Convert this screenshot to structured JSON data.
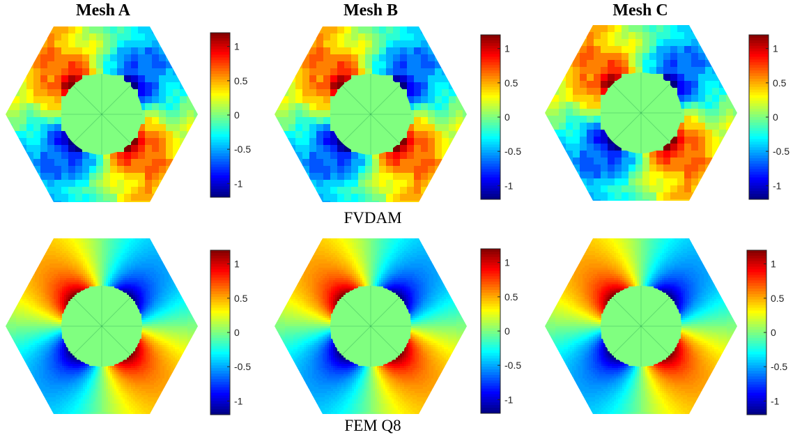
{
  "columns": [
    "Mesh A",
    "Mesh B",
    "Mesh C"
  ],
  "rows": [
    {
      "label": "FVDAM",
      "style": "stepped"
    },
    {
      "label": "FEM Q8",
      "style": "smooth"
    }
  ],
  "colorbar": {
    "ticks": [
      1,
      0.5,
      0,
      -0.5,
      -1
    ],
    "tick_labels": [
      "1",
      "0.5",
      "0",
      "-0.5",
      "-1"
    ],
    "range": [
      -1.2,
      1.2
    ],
    "colormap": "jet"
  },
  "field": {
    "pattern": "quadrupole",
    "positive_quadrants": [
      "upper-left",
      "lower-right"
    ],
    "negative_quadrants": [
      "upper-right",
      "lower-left"
    ],
    "inclusion_value": 0
  }
}
